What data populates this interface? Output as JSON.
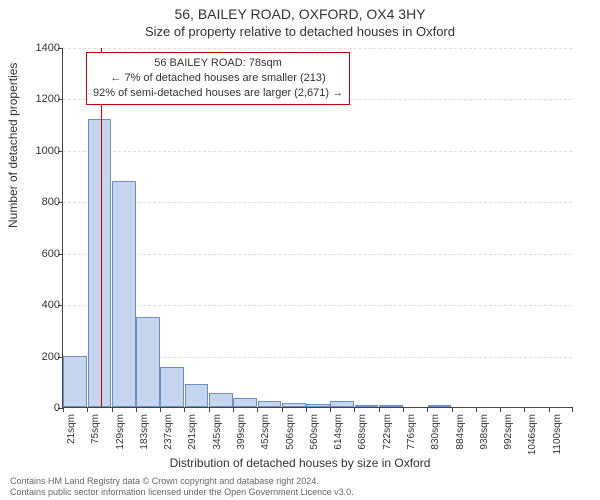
{
  "header": {
    "title": "56, BAILEY ROAD, OXFORD, OX4 3HY",
    "subtitle": "Size of property relative to detached houses in Oxford"
  },
  "chart": {
    "type": "histogram",
    "y_label": "Number of detached properties",
    "x_label": "Distribution of detached houses by size in Oxford",
    "ylim": [
      0,
      1400
    ],
    "ytick_step": 200,
    "y_ticks": [
      0,
      200,
      400,
      600,
      800,
      1000,
      1200,
      1400
    ],
    "x_tick_labels": [
      "21sqm",
      "75sqm",
      "129sqm",
      "183sqm",
      "237sqm",
      "291sqm",
      "345sqm",
      "399sqm",
      "452sqm",
      "506sqm",
      "560sqm",
      "614sqm",
      "668sqm",
      "722sqm",
      "776sqm",
      "830sqm",
      "884sqm",
      "938sqm",
      "992sqm",
      "1046sqm",
      "1100sqm"
    ],
    "bar_fill": "#c7d6ef",
    "bar_stroke": "#6e8fc2",
    "bar_stroke_width": 1,
    "background_color": "#ffffff",
    "grid_color": "#dddddd",
    "axis_color": "#444444",
    "label_fontsize": 12,
    "tick_fontsize": 11,
    "bars": [
      {
        "x": 21,
        "count": 200
      },
      {
        "x": 75,
        "count": 1120
      },
      {
        "x": 129,
        "count": 880
      },
      {
        "x": 183,
        "count": 350
      },
      {
        "x": 237,
        "count": 155
      },
      {
        "x": 291,
        "count": 90
      },
      {
        "x": 345,
        "count": 55
      },
      {
        "x": 399,
        "count": 35
      },
      {
        "x": 452,
        "count": 22
      },
      {
        "x": 506,
        "count": 15
      },
      {
        "x": 560,
        "count": 10
      },
      {
        "x": 614,
        "count": 22
      },
      {
        "x": 668,
        "count": 5
      },
      {
        "x": 722,
        "count": 3
      },
      {
        "x": 776,
        "count": 0
      },
      {
        "x": 830,
        "count": 3
      },
      {
        "x": 884,
        "count": 0
      },
      {
        "x": 938,
        "count": 0
      },
      {
        "x": 992,
        "count": 0
      },
      {
        "x": 1046,
        "count": 0
      },
      {
        "x": 1100,
        "count": 0
      }
    ],
    "marker": {
      "x": 78,
      "color": "#cc0000"
    }
  },
  "info_box": {
    "border_color": "#cc0000",
    "line1": "56 BAILEY ROAD: 78sqm",
    "line2": "← 7% of detached houses are smaller (213)",
    "line3": "92% of semi-detached houses are larger (2,671) →"
  },
  "footer": {
    "line1": "Contains HM Land Registry data © Crown copyright and database right 2024.",
    "line2": "Contains public sector information licensed under the Open Government Licence v3.0."
  }
}
